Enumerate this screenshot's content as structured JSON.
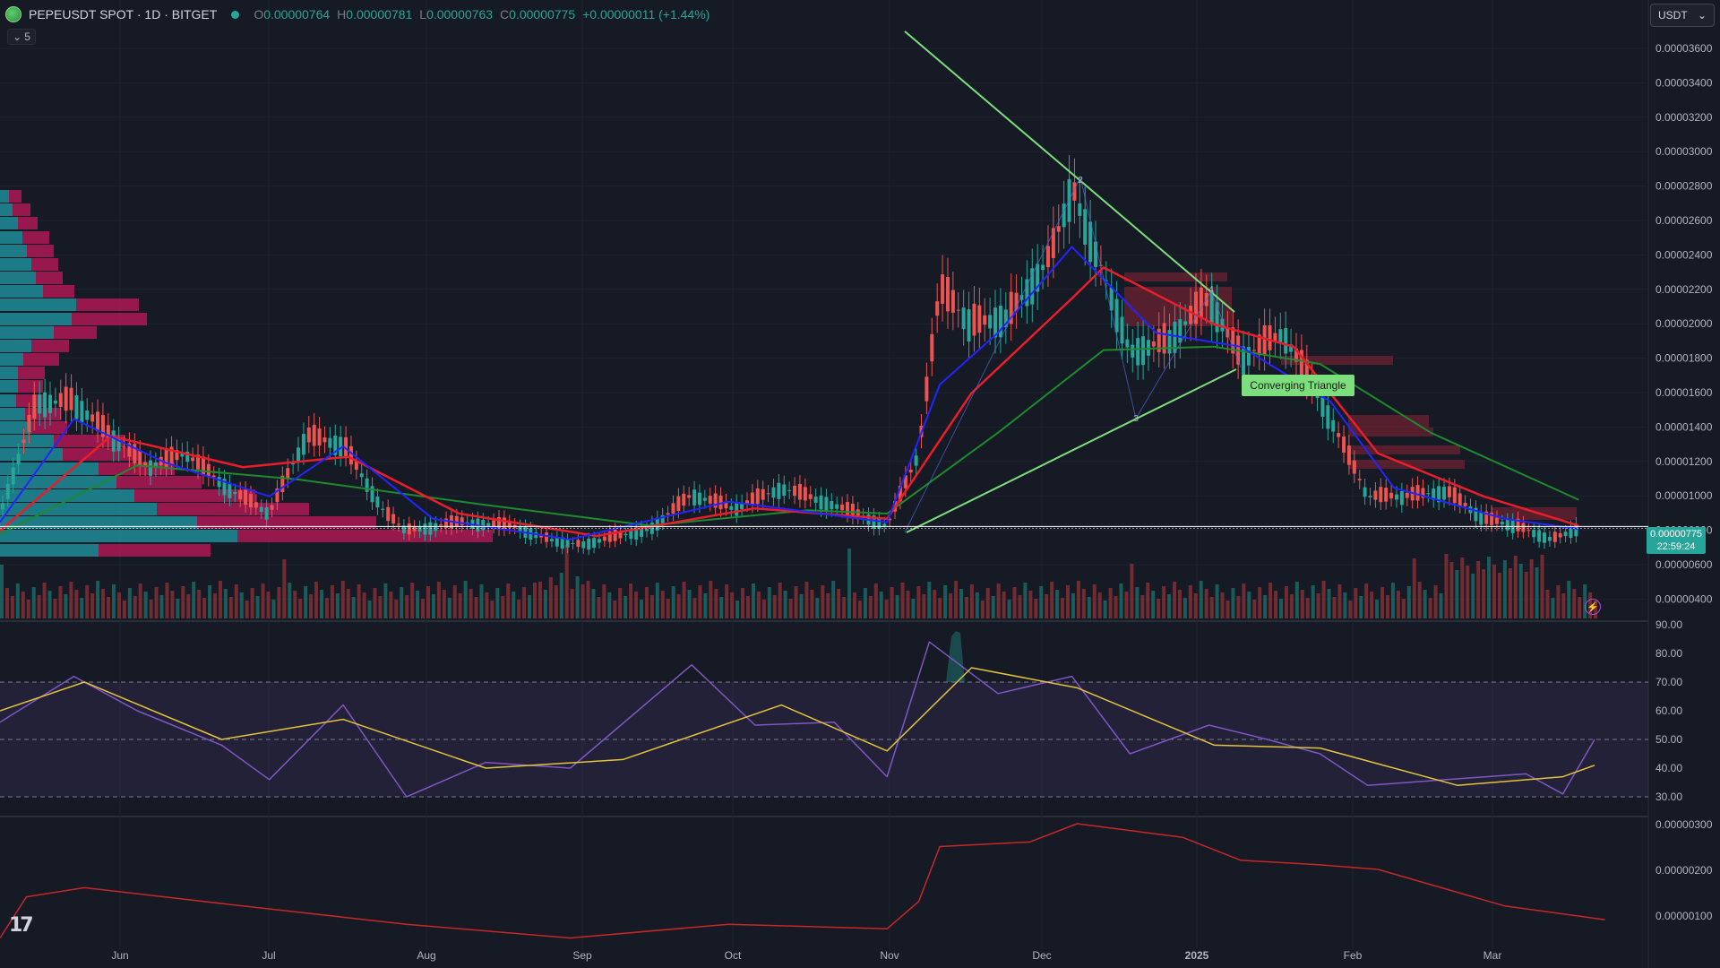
{
  "header": {
    "symbol": "PEPEUSDT SPOT · 1D · BITGET",
    "o_label": "O",
    "o_value": "0.00000764",
    "h_label": "H",
    "h_value": "0.00000781",
    "l_label": "L",
    "l_value": "0.00000763",
    "c_label": "C",
    "c_value": "0.00000775",
    "change": "+0.00000011 (+1.44%)"
  },
  "indicator_toggle": {
    "icon": "chevron-down-icon",
    "count": "5"
  },
  "currency_select": {
    "value": "USDT"
  },
  "price_tag": {
    "price": "0.00000775",
    "countdown": "22:59:24"
  },
  "pattern_label": "Converging Triangle",
  "wave_labels": [
    "2",
    "3",
    "4"
  ],
  "colors": {
    "background": "#161a25",
    "up": "#26a69a",
    "down": "#ef5350",
    "ema_fast": "#2424ff",
    "ema_mid": "#e91e2a",
    "ema_slow": "#1e8a2e",
    "trendline": "#7dde7d",
    "rsi": "#7e57c2",
    "rsi_ma": "#e3c33d",
    "lower_line": "#c62828"
  },
  "chart_data": [
    {
      "type": "candlestick",
      "y_axis_ticks": [
        "0.00003600",
        "0.00003400",
        "0.00003200",
        "0.00003000",
        "0.00002800",
        "0.00002600",
        "0.00002400",
        "0.00002200",
        "0.00002000",
        "0.00001800",
        "0.00001600",
        "0.00001400",
        "0.00001200",
        "0.00001000",
        "0.00000800",
        "0.00000600",
        "0.00000400"
      ],
      "x_axis_ticks": [
        "Jun",
        "Jul",
        "Aug",
        "Sep",
        "Oct",
        "Nov",
        "Dec",
        "2025",
        "Feb",
        "Mar"
      ],
      "ylim": [
        3e-06,
        3.75e-05
      ],
      "current_price": 7.75e-06,
      "close_series": [
        [
          "2024-05-20",
          8.5e-06
        ],
        [
          "2024-05-27",
          1.5e-05
        ],
        [
          "2024-06-03",
          1.5e-05
        ],
        [
          "2024-06-10",
          1.3e-05
        ],
        [
          "2024-06-17",
          1.12e-05
        ],
        [
          "2024-06-24",
          1.2e-05
        ],
        [
          "2024-07-03",
          9.8e-06
        ],
        [
          "2024-07-10",
          8.5e-06
        ],
        [
          "2024-07-17",
          1.3e-05
        ],
        [
          "2024-07-24",
          1.25e-05
        ],
        [
          "2024-08-01",
          8.5e-06
        ],
        [
          "2024-08-05",
          7.5e-06
        ],
        [
          "2024-08-15",
          8e-06
        ],
        [
          "2024-08-25",
          7.8e-06
        ],
        [
          "2024-09-01",
          7e-06
        ],
        [
          "2024-09-07",
          6.7e-06
        ],
        [
          "2024-09-20",
          7.6e-06
        ],
        [
          "2024-09-28",
          9.6e-06
        ],
        [
          "2024-10-06",
          8.8e-06
        ],
        [
          "2024-10-15",
          1e-05
        ],
        [
          "2024-10-25",
          9e-06
        ],
        [
          "2024-11-04",
          7.8e-06
        ],
        [
          "2024-11-10",
          1.2e-05
        ],
        [
          "2024-11-14",
          2.15e-05
        ],
        [
          "2024-11-20",
          1.95e-05
        ],
        [
          "2024-11-27",
          2e-05
        ],
        [
          "2024-12-05",
          2.35e-05
        ],
        [
          "2024-12-09",
          2.75e-05
        ],
        [
          "2024-12-15",
          2.25e-05
        ],
        [
          "2024-12-20",
          1.8e-05
        ],
        [
          "2024-12-27",
          1.85e-05
        ],
        [
          "2025-01-04",
          2.1e-05
        ],
        [
          "2025-01-10",
          1.75e-05
        ],
        [
          "2025-01-18",
          1.9e-05
        ],
        [
          "2025-01-27",
          1.4e-05
        ],
        [
          "2025-02-03",
          9.5e-06
        ],
        [
          "2025-02-10",
          9.5e-06
        ],
        [
          "2025-02-18",
          9.8e-06
        ],
        [
          "2025-02-25",
          8.2e-06
        ],
        [
          "2025-03-03",
          7.8e-06
        ],
        [
          "2025-03-10",
          7e-06
        ],
        [
          "2025-03-15",
          7.7e-06
        ]
      ],
      "ema_fast": [
        [
          "2024-05-20",
          8e-06
        ],
        [
          "2024-06-03",
          1.4e-05
        ],
        [
          "2024-06-20",
          1.15e-05
        ],
        [
          "2024-07-10",
          9.5e-06
        ],
        [
          "2024-07-24",
          1.24e-05
        ],
        [
          "2024-08-10",
          8.2e-06
        ],
        [
          "2024-09-05",
          7e-06
        ],
        [
          "2024-10-05",
          9.2e-06
        ],
        [
          "2024-11-04",
          8e-06
        ],
        [
          "2024-11-14",
          1.6e-05
        ],
        [
          "2024-11-25",
          1.9e-05
        ],
        [
          "2024-12-09",
          2.4e-05
        ],
        [
          "2024-12-25",
          1.9e-05
        ],
        [
          "2025-01-10",
          1.82e-05
        ],
        [
          "2025-01-27",
          1.5e-05
        ],
        [
          "2025-02-08",
          1e-05
        ],
        [
          "2025-03-01",
          8.2e-06
        ],
        [
          "2025-03-15",
          7.6e-06
        ]
      ],
      "ema_mid": [
        [
          "2024-05-20",
          7.5e-06
        ],
        [
          "2024-06-10",
          1.3e-05
        ],
        [
          "2024-07-05",
          1.12e-05
        ],
        [
          "2024-07-25",
          1.18e-05
        ],
        [
          "2024-08-15",
          8.5e-06
        ],
        [
          "2024-09-10",
          7.2e-06
        ],
        [
          "2024-10-10",
          8.8e-06
        ],
        [
          "2024-11-04",
          8.2e-06
        ],
        [
          "2024-11-20",
          1.55e-05
        ],
        [
          "2024-12-09",
          2.1e-05
        ],
        [
          "2024-12-15",
          2.28e-05
        ],
        [
          "2025-01-05",
          1.95e-05
        ],
        [
          "2025-01-20",
          1.82e-05
        ],
        [
          "2025-02-05",
          1.2e-05
        ],
        [
          "2025-02-25",
          9.5e-06
        ],
        [
          "2025-03-15",
          7.8e-06
        ]
      ],
      "ema_slow": [
        [
          "2024-05-20",
          7.3e-06
        ],
        [
          "2024-06-15",
          1.13e-05
        ],
        [
          "2024-07-15",
          1.05e-05
        ],
        [
          "2024-08-20",
          9e-06
        ],
        [
          "2024-09-20",
          7.8e-06
        ],
        [
          "2024-10-20",
          8.7e-06
        ],
        [
          "2024-11-04",
          8.5e-06
        ],
        [
          "2024-11-25",
          1.32e-05
        ],
        [
          "2024-12-15",
          1.8e-05
        ],
        [
          "2025-01-05",
          1.82e-05
        ],
        [
          "2025-01-25",
          1.72e-05
        ],
        [
          "2025-02-15",
          1.32e-05
        ],
        [
          "2025-03-15",
          9.3e-06
        ]
      ],
      "volume_profile_zones": [
        "buy",
        "sell"
      ]
    },
    {
      "type": "line",
      "name": "RSI",
      "y_axis_ticks": [
        "90.00",
        "80.00",
        "70.00",
        "60.00",
        "50.00",
        "40.00",
        "30.00"
      ],
      "ylim": [
        25,
        92
      ],
      "levels": [
        70,
        50,
        30
      ],
      "rsi": [
        [
          "2024-05-20",
          56
        ],
        [
          "2024-06-03",
          72
        ],
        [
          "2024-06-15",
          60
        ],
        [
          "2024-07-01",
          48
        ],
        [
          "2024-07-10",
          36
        ],
        [
          "2024-07-24",
          62
        ],
        [
          "2024-08-05",
          30
        ],
        [
          "2024-08-20",
          42
        ],
        [
          "2024-09-05",
          40
        ],
        [
          "2024-09-28",
          76
        ],
        [
          "2024-10-10",
          55
        ],
        [
          "2024-10-25",
          56
        ],
        [
          "2024-11-04",
          37
        ],
        [
          "2024-11-12",
          84
        ],
        [
          "2024-11-25",
          66
        ],
        [
          "2024-12-09",
          72
        ],
        [
          "2024-12-20",
          45
        ],
        [
          "2025-01-04",
          55
        ],
        [
          "2025-01-15",
          50
        ],
        [
          "2025-01-25",
          45
        ],
        [
          "2025-02-03",
          34
        ],
        [
          "2025-02-18",
          36
        ],
        [
          "2025-03-05",
          38
        ],
        [
          "2025-03-12",
          31
        ],
        [
          "2025-03-18",
          50
        ]
      ],
      "rsi_ma": [
        [
          "2024-05-20",
          60
        ],
        [
          "2024-06-05",
          70
        ],
        [
          "2024-07-01",
          50
        ],
        [
          "2024-07-24",
          57
        ],
        [
          "2024-08-20",
          40
        ],
        [
          "2024-09-15",
          43
        ],
        [
          "2024-10-15",
          62
        ],
        [
          "2024-11-04",
          46
        ],
        [
          "2024-11-20",
          75
        ],
        [
          "2024-12-10",
          68
        ],
        [
          "2025-01-05",
          48
        ],
        [
          "2025-01-25",
          47
        ],
        [
          "2025-02-20",
          34
        ],
        [
          "2025-03-12",
          37
        ],
        [
          "2025-03-18",
          41
        ]
      ]
    },
    {
      "type": "line",
      "y_axis_ticks": [
        "0.00000300",
        "0.00000200",
        "0.00000100"
      ],
      "ylim": [
        3e-07,
        3.3e-06
      ],
      "values": [
        [
          "2024-05-20",
          5e-07
        ],
        [
          "2024-05-25",
          1.4e-06
        ],
        [
          "2024-06-05",
          1.6e-06
        ],
        [
          "2024-07-05",
          1.2e-06
        ],
        [
          "2024-08-05",
          8e-07
        ],
        [
          "2024-09-05",
          5e-07
        ],
        [
          "2024-10-05",
          8e-07
        ],
        [
          "2024-11-04",
          7e-07
        ],
        [
          "2024-11-10",
          1.3e-06
        ],
        [
          "2024-11-14",
          2.5e-06
        ],
        [
          "2024-12-01",
          2.6e-06
        ],
        [
          "2024-12-10",
          3e-06
        ],
        [
          "2024-12-30",
          2.7e-06
        ],
        [
          "2025-01-10",
          2.2e-06
        ],
        [
          "2025-01-25",
          2.1e-06
        ],
        [
          "2025-02-05",
          2e-06
        ],
        [
          "2025-03-01",
          1.2e-06
        ],
        [
          "2025-03-20",
          9e-07
        ]
      ]
    }
  ]
}
